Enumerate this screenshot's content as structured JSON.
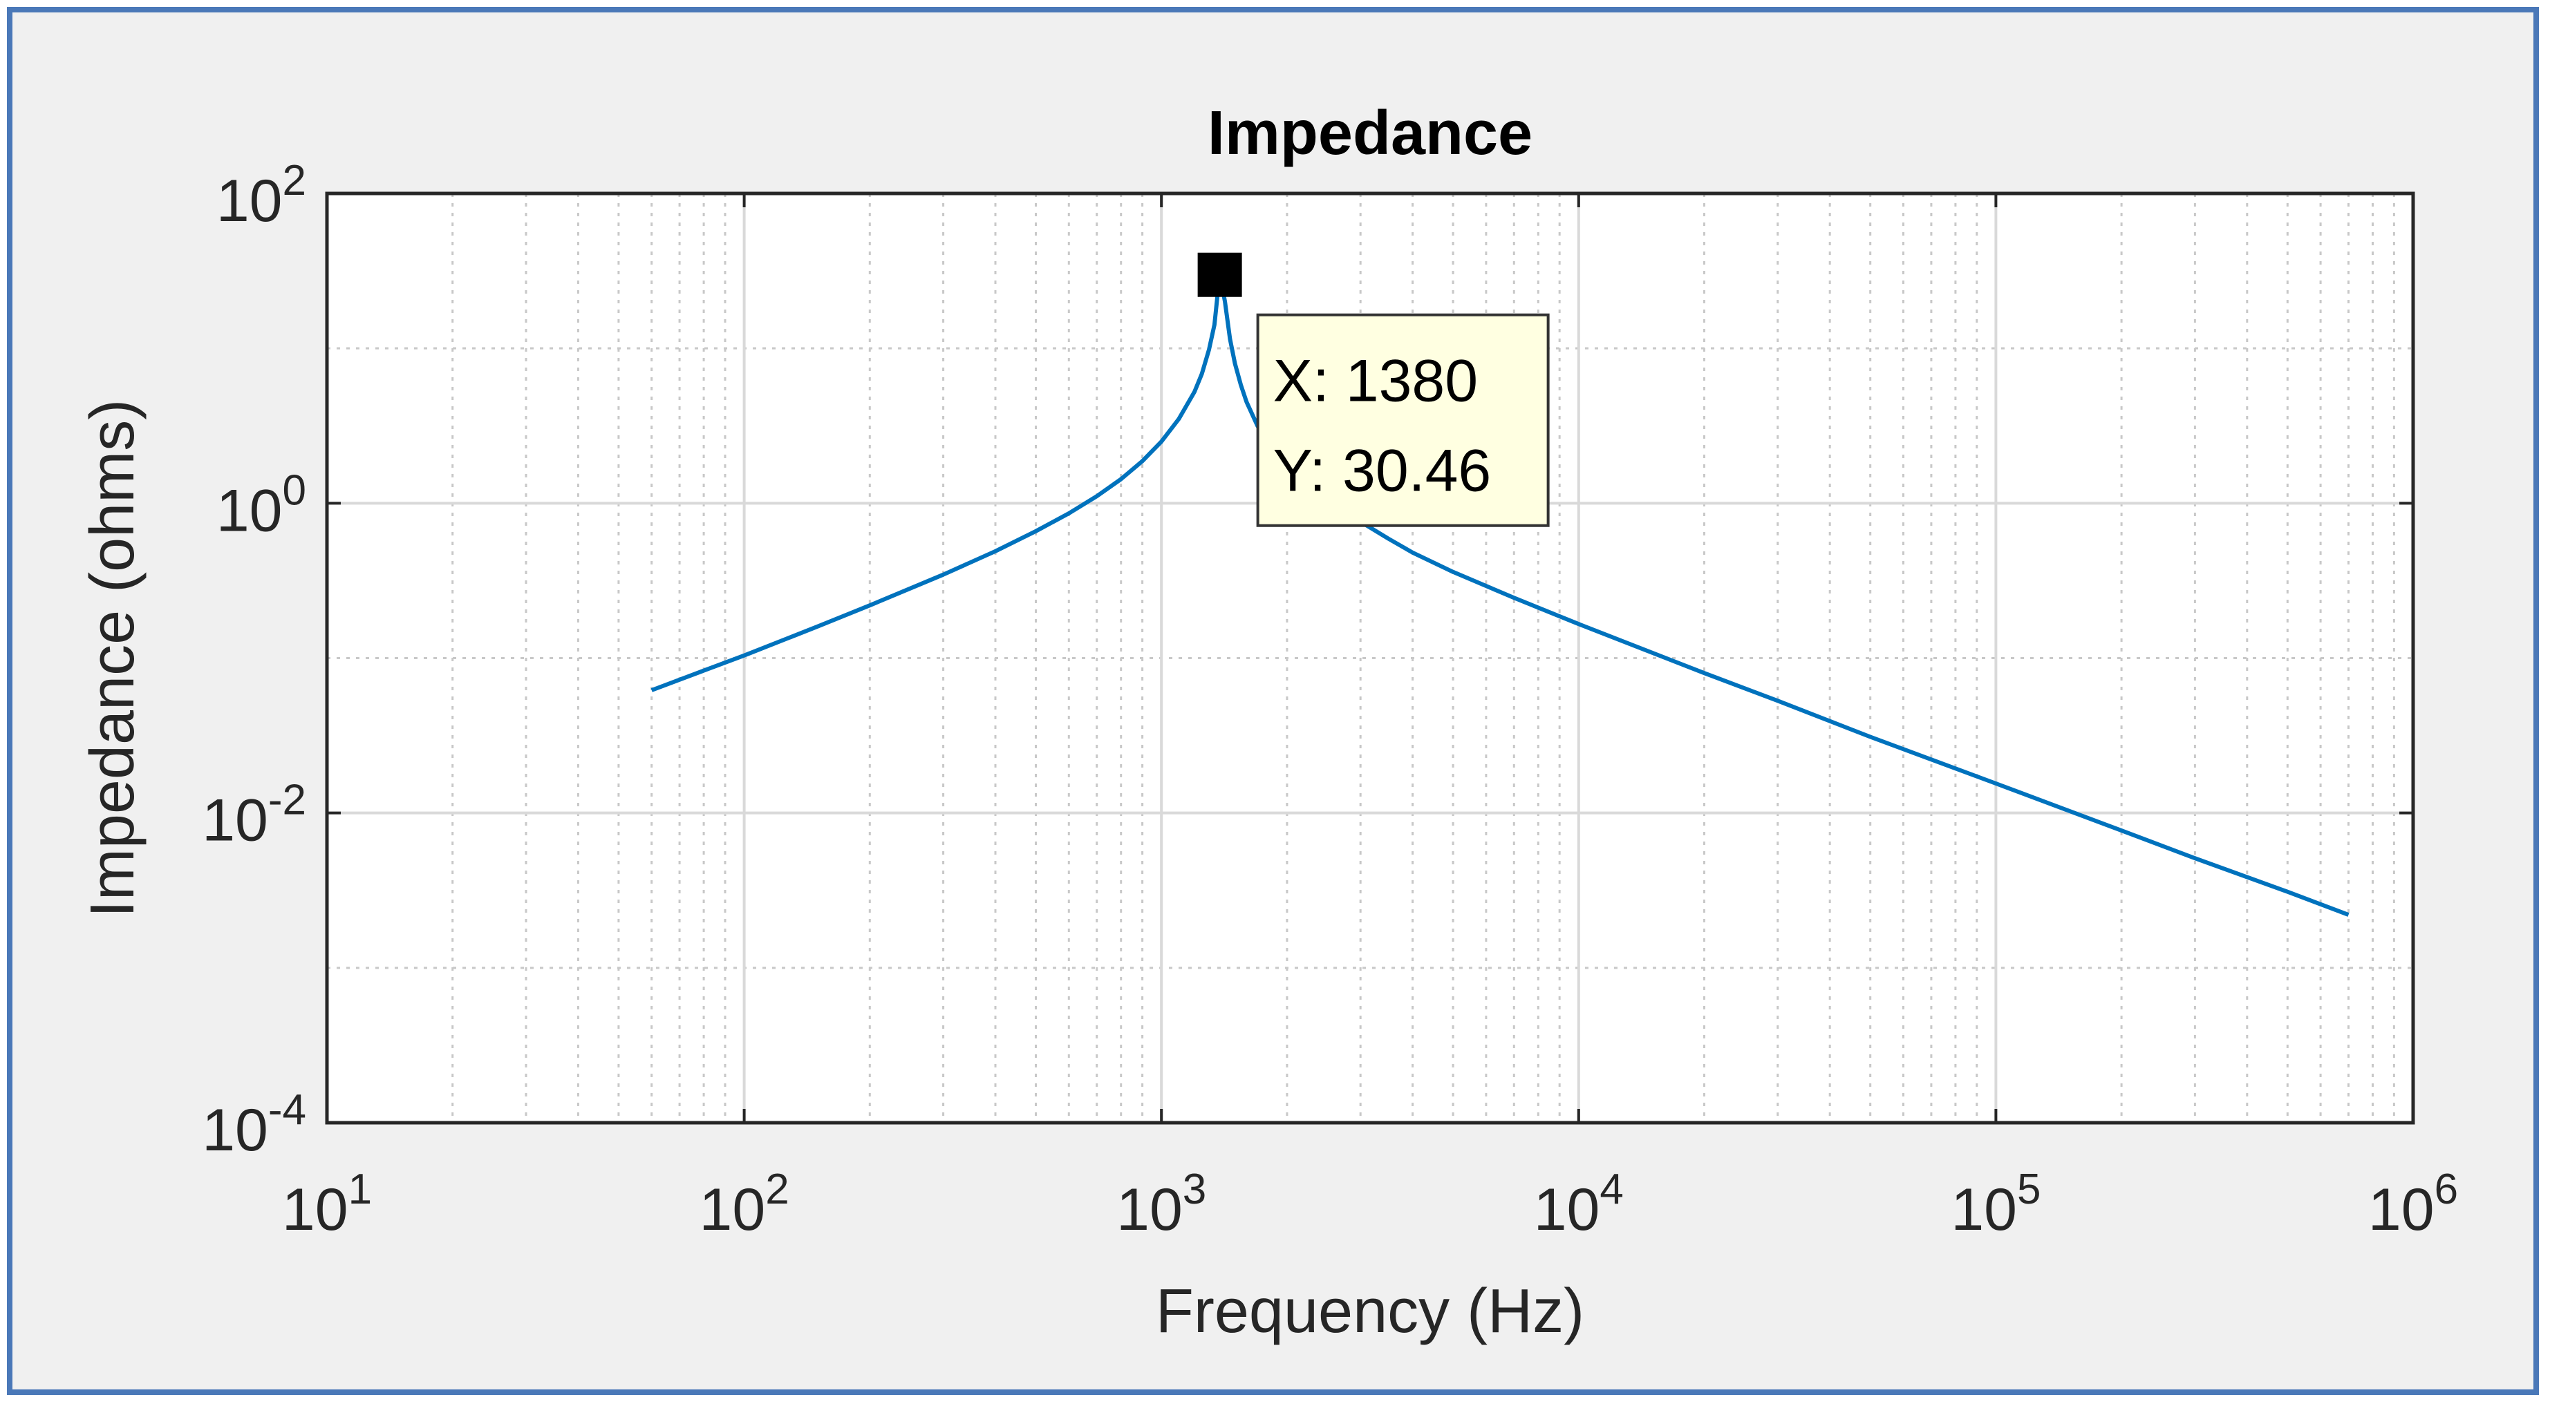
{
  "chart_data": {
    "type": "line",
    "title": "Impedance",
    "xlabel": "Frequency (Hz)",
    "ylabel": "Impedance (ohms)",
    "xscale": "log",
    "yscale": "log",
    "xlim": [
      10,
      1000000
    ],
    "ylim": [
      0.0001,
      100
    ],
    "grid": true,
    "minor_grid": true,
    "x_ticks": [
      {
        "base": "10",
        "exp": "1",
        "value": 10
      },
      {
        "base": "10",
        "exp": "2",
        "value": 100
      },
      {
        "base": "10",
        "exp": "3",
        "value": 1000
      },
      {
        "base": "10",
        "exp": "4",
        "value": 10000
      },
      {
        "base": "10",
        "exp": "5",
        "value": 100000
      },
      {
        "base": "10",
        "exp": "6",
        "value": 1000000
      }
    ],
    "y_ticks": [
      {
        "base": "10",
        "exp": "-4",
        "value": 0.0001
      },
      {
        "base": "10",
        "exp": "-2",
        "value": 0.01
      },
      {
        "base": "10",
        "exp": "0",
        "value": 1
      },
      {
        "base": "10",
        "exp": "2",
        "value": 100
      }
    ],
    "line_color": "#0072bd",
    "series": [
      {
        "x": [
          60,
          80,
          100,
          150,
          200,
          300,
          400,
          500,
          600,
          700,
          800,
          900,
          1000,
          1100,
          1200,
          1250,
          1300,
          1340,
          1380,
          1420,
          1460,
          1500,
          1550,
          1600,
          1700,
          1800,
          2000,
          2500,
          3000,
          3500,
          4000,
          5000,
          7000,
          10000,
          20000,
          30000,
          50000,
          100000,
          200000,
          300000,
          500000,
          700000
        ],
        "y": [
          0.062,
          0.083,
          0.104,
          0.16,
          0.219,
          0.346,
          0.49,
          0.66,
          0.86,
          1.11,
          1.43,
          1.87,
          2.5,
          3.49,
          5.24,
          6.85,
          9.8,
          14.2,
          30.46,
          20.0,
          11.5,
          8.0,
          5.8,
          4.5,
          3.15,
          2.5,
          1.75,
          1.05,
          0.76,
          0.59,
          0.48,
          0.36,
          0.245,
          0.166,
          0.08,
          0.053,
          0.031,
          0.0155,
          0.0077,
          0.0051,
          0.0031,
          0.0022
        ]
      }
    ],
    "datatip": {
      "x_text": "X: 1380",
      "y_text": "Y: 30.46",
      "x": 1380,
      "y": 30.46
    }
  }
}
